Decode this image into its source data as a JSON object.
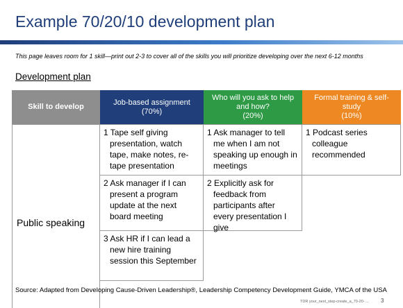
{
  "slide": {
    "title": "Example 70/20/10 development plan",
    "subtitle": "This page leaves room for 1 skill—print out 2-3 to cover all of the skills you will prioritize developing over the next 6-12 months",
    "section_label": "Development plan",
    "source": "Source: Adapted from Developing Cause-Driven Leadership®, Leadership Competency Development Guide, YMCA of the USA",
    "footer": "TDR     your_next_step-create_a_70-20- ...",
    "page_number": "3",
    "colors": {
      "title": "#1f3e7a",
      "header_skill": "#8e8e8e",
      "header_job": "#1f3e7a",
      "header_ask": "#2e9a45",
      "header_training": "#ee8822"
    }
  },
  "table": {
    "headers": {
      "skill": "Skill to develop",
      "job": {
        "line1": "Job-based assignment",
        "line2": "(70%)"
      },
      "ask": {
        "line1": "Who will you ask to help and how?",
        "line2": "(20%)"
      },
      "training": {
        "line1": "Formal training & self-study",
        "line2": "(10%)"
      }
    },
    "skill": "Public speaking",
    "job_items": [
      "1 Tape self giving presentation, watch tape, make notes, re-tape presentation",
      "2 Ask manager if I can present a program update at the next board meeting",
      "3 Ask HR if I can lead a new hire training session this September"
    ],
    "ask_items": [
      "1 Ask manager to tell me when I am not speaking up enough in meetings",
      "2 Explicitly ask for feedback from participants after every presentation I give"
    ],
    "training_items": [
      "1 Podcast series colleague recommended"
    ]
  }
}
